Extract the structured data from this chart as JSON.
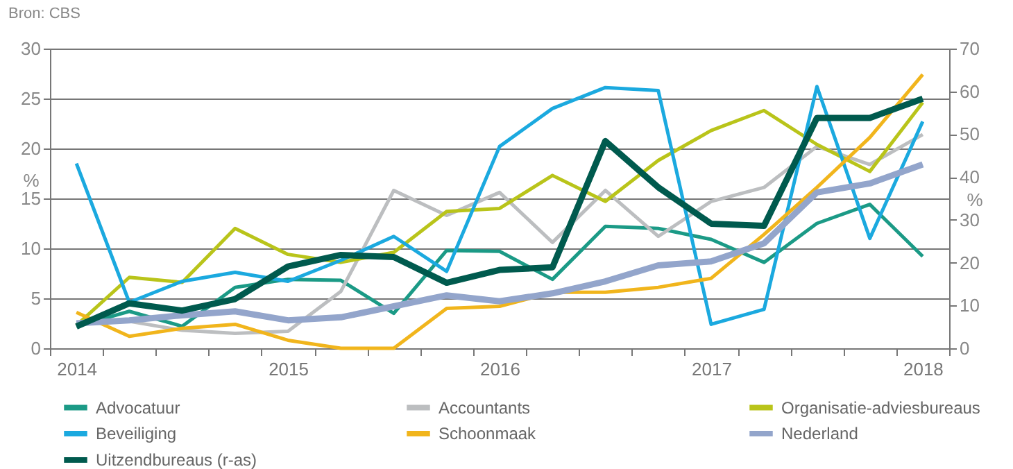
{
  "chart_data": {
    "type": "line",
    "annotations": [
      "Bron: CBS"
    ],
    "ylabel": "%",
    "y2label": "%",
    "categories": [
      "2014",
      null,
      null,
      null,
      "2015",
      null,
      null,
      null,
      "2016",
      null,
      null,
      null,
      "2017",
      null,
      null,
      null,
      "2018"
    ],
    "ylim": [
      0,
      30
    ],
    "yticks": [
      0,
      5,
      10,
      15,
      20,
      25,
      30
    ],
    "y2lim": [
      0,
      70
    ],
    "y2ticks": [
      0,
      10,
      20,
      30,
      40,
      50,
      60,
      70
    ],
    "grid": "y",
    "legend": "bottom",
    "marker": "none",
    "line_style": "solid",
    "series": [
      {
        "name": "Advocatuur",
        "color": "#1b9a86",
        "values": [
          2.2,
          3.7,
          2.2,
          6.1,
          6.9,
          6.8,
          3.5,
          9.8,
          9.7,
          6.9,
          12.2,
          12.0,
          10.9,
          8.6,
          12.5,
          14.4,
          9.2
        ]
      },
      {
        "name": "Accountants",
        "color": "#bcbec0",
        "values": [
          2.5,
          2.7,
          1.8,
          1.5,
          1.7,
          5.7,
          15.8,
          13.3,
          15.6,
          10.6,
          15.8,
          11.2,
          14.7,
          16.1,
          20.2,
          18.4,
          21.4
        ]
      },
      {
        "name": "Organisatie-adviesbureaus",
        "color": "#b9c41a",
        "values": [
          2.3,
          7.1,
          6.6,
          12.0,
          9.4,
          8.6,
          9.6,
          13.7,
          14.0,
          17.3,
          14.7,
          18.8,
          21.8,
          23.8,
          20.4,
          17.7,
          24.6
        ]
      },
      {
        "name": "Beveiliging",
        "color": "#1ba9df",
        "values": [
          18.5,
          4.6,
          6.7,
          7.6,
          6.7,
          8.8,
          11.2,
          7.7,
          20.2,
          24.0,
          26.1,
          25.8,
          2.4,
          3.9,
          26.2,
          11.0,
          22.7
        ]
      },
      {
        "name": "Schoonmaak",
        "color": "#f1b51c",
        "values": [
          3.6,
          1.2,
          2.0,
          2.4,
          0.8,
          0,
          0,
          4.0,
          4.2,
          5.6,
          5.6,
          6.1,
          7.0,
          11.4,
          16.1,
          21.1,
          27.4
        ]
      },
      {
        "name": "Nederland",
        "color": "#93a5cb",
        "values": [
          2.5,
          2.8,
          3.3,
          3.7,
          2.8,
          3.1,
          4.2,
          5.3,
          4.7,
          5.5,
          6.7,
          8.3,
          8.7,
          10.5,
          15.6,
          16.5,
          18.4
        ]
      },
      {
        "name": "Uitzendbureaus (r-as)",
        "color": "#005a4e",
        "axis": "y2",
        "values": [
          5.1,
          10.5,
          8.8,
          11.5,
          19.1,
          21.8,
          21.3,
          15.3,
          18.3,
          18.9,
          48.4,
          37.6,
          29.1,
          28.6,
          53.8,
          53.8,
          58.3
        ]
      }
    ]
  }
}
